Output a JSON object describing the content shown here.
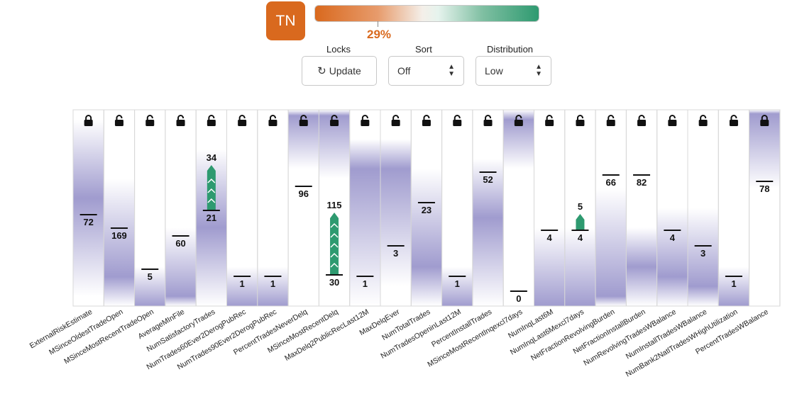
{
  "header": {
    "badge": "TN",
    "gauge_value": "29%",
    "gauge_fraction": 0.29,
    "colors": {
      "accent": "#d9691e",
      "positive": "#2e9a70",
      "band": "#8f8ac6"
    }
  },
  "controls": {
    "locks_label": "Locks",
    "update_label": "Update",
    "update_icon": "refresh-icon",
    "sort_label": "Sort",
    "sort_value": "Off",
    "distribution_label": "Distribution",
    "distribution_value": "Low"
  },
  "features": [
    {
      "name": "ExternalRiskEstimate",
      "value": "72",
      "locked": true
    },
    {
      "name": "MSinceOldestTradeOpen",
      "value": "169",
      "locked": false
    },
    {
      "name": "MSinceMostRecentTradeOpen",
      "value": "5",
      "locked": false
    },
    {
      "name": "AverageMInFile",
      "value": "60",
      "locked": false
    },
    {
      "name": "NumSatisfactoryTrades",
      "value": "21",
      "locked": false,
      "target": "34"
    },
    {
      "name": "NumTrades60Ever2DerogPubRec",
      "value": "1",
      "locked": false
    },
    {
      "name": "NumTrades90Ever2DerogPubRec",
      "value": "1",
      "locked": false
    },
    {
      "name": "PercentTradesNeverDelq",
      "value": "96",
      "locked": false
    },
    {
      "name": "MSinceMostRecentDelq",
      "value": "30",
      "locked": false,
      "target": "115"
    },
    {
      "name": "MaxDelq2PublicRecLast12M",
      "value": "1",
      "locked": false
    },
    {
      "name": "MaxDelqEver",
      "value": "3",
      "locked": false
    },
    {
      "name": "NumTotalTrades",
      "value": "23",
      "locked": false
    },
    {
      "name": "NumTradesOpeninLast12M",
      "value": "1",
      "locked": false
    },
    {
      "name": "PercentInstallTrades",
      "value": "52",
      "locked": false
    },
    {
      "name": "MSinceMostRecentInqexcl7days",
      "value": "0",
      "locked": false
    },
    {
      "name": "NumInqLast6M",
      "value": "4",
      "locked": false
    },
    {
      "name": "NumInqLast6Mexcl7days",
      "value": "4",
      "locked": false,
      "target": "5"
    },
    {
      "name": "NetFractionRevolvingBurden",
      "value": "66",
      "locked": false
    },
    {
      "name": "NetFractionInstallBurden",
      "value": "82",
      "locked": false
    },
    {
      "name": "NumRevolvingTradesWBalance",
      "value": "4",
      "locked": false
    },
    {
      "name": "NumInstallTradesWBalance",
      "value": "3",
      "locked": false
    },
    {
      "name": "NumBank2NatlTradesWHighUtilization",
      "value": "1",
      "locked": false
    },
    {
      "name": "PercentTradesWBalance",
      "value": "78",
      "locked": true
    }
  ]
}
